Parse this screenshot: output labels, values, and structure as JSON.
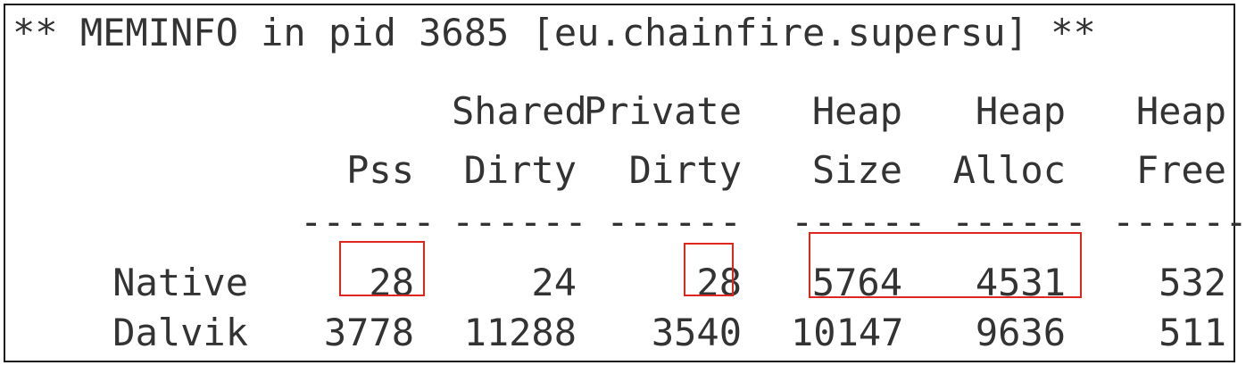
{
  "title": "** MEMINFO in pid 3685 [eu.chainfire.supersu] **",
  "header_row1": [
    "",
    "",
    "Shared",
    "Private",
    "Heap",
    "Heap",
    "Heap"
  ],
  "header_row2": [
    "",
    "Pss",
    "Dirty",
    "Dirty",
    "Size",
    "Alloc",
    "Free"
  ],
  "separator": "------",
  "rows": [
    {
      "label": "Native",
      "pss": "28",
      "shared_dirty": "24",
      "private_dirty": "28",
      "heap_size": "5764",
      "heap_alloc": "4531",
      "heap_free": "532"
    },
    {
      "label": "Dalvik",
      "pss": "3778",
      "shared_dirty": "11288",
      "private_dirty": "3540",
      "heap_size": "10147",
      "heap_alloc": "9636",
      "heap_free": "511"
    }
  ],
  "highlight_color": "#e0261f"
}
